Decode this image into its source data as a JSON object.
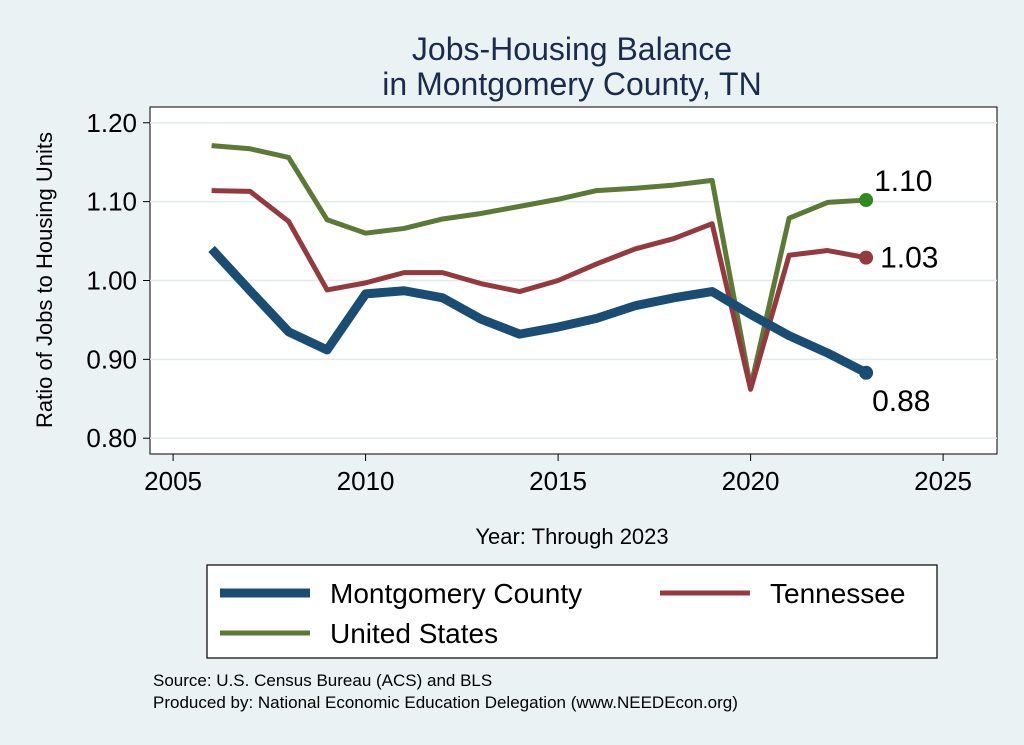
{
  "chart_data": {
    "type": "line",
    "title": [
      "Jobs-Housing Balance",
      "in Montgomery County, TN"
    ],
    "xlabel": "Year: Through 2023",
    "ylabel": "Ratio of Jobs to Housing Units",
    "xlim": [
      2004.4,
      2026.4
    ],
    "ylim": [
      0.78,
      1.22
    ],
    "xticks": [
      2005,
      2010,
      2015,
      2020,
      2025
    ],
    "yticks": [
      0.8,
      0.9,
      1.0,
      1.1,
      1.2
    ],
    "ytick_labels": [
      "0.80",
      "0.90",
      "1.00",
      "1.10",
      "1.20"
    ],
    "grid": true,
    "x": [
      2006,
      2007,
      2008,
      2009,
      2010,
      2011,
      2012,
      2013,
      2014,
      2015,
      2016,
      2017,
      2018,
      2019,
      2020,
      2021,
      2022,
      2023
    ],
    "series": [
      {
        "name": "Montgomery County",
        "color": "#1a4d74",
        "values": [
          1.04,
          0.987,
          0.935,
          0.912,
          0.983,
          0.987,
          0.978,
          0.951,
          0.932,
          0.941,
          0.952,
          0.968,
          0.978,
          0.986,
          0.957,
          0.93,
          0.908,
          0.883
        ],
        "end_label": "0.88",
        "end_marker": true
      },
      {
        "name": "Tennessee",
        "color": "#943a3f",
        "values": [
          1.114,
          1.113,
          1.075,
          0.988,
          0.997,
          1.01,
          1.01,
          0.996,
          0.986,
          1.0,
          1.021,
          1.04,
          1.053,
          1.072,
          0.862,
          1.032,
          1.038,
          1.029
        ],
        "end_label": "1.03",
        "end_marker": true
      },
      {
        "name": "United States",
        "color": "#5a7a35",
        "marker_color": "#2e8b1f",
        "values": [
          1.171,
          1.167,
          1.156,
          1.077,
          1.06,
          1.066,
          1.078,
          1.085,
          1.094,
          1.103,
          1.114,
          1.117,
          1.121,
          1.127,
          0.865,
          1.079,
          1.099,
          1.102
        ],
        "end_label": "1.10",
        "end_marker": true
      }
    ],
    "legend": {
      "position": "bottom",
      "entries": [
        "Montgomery County",
        "Tennessee",
        "United States"
      ]
    },
    "notes": [
      "Source: U.S. Census Bureau (ACS) and BLS",
      "Produced by: National Economic Education Delegation (www.NEEDEcon.org)"
    ]
  }
}
